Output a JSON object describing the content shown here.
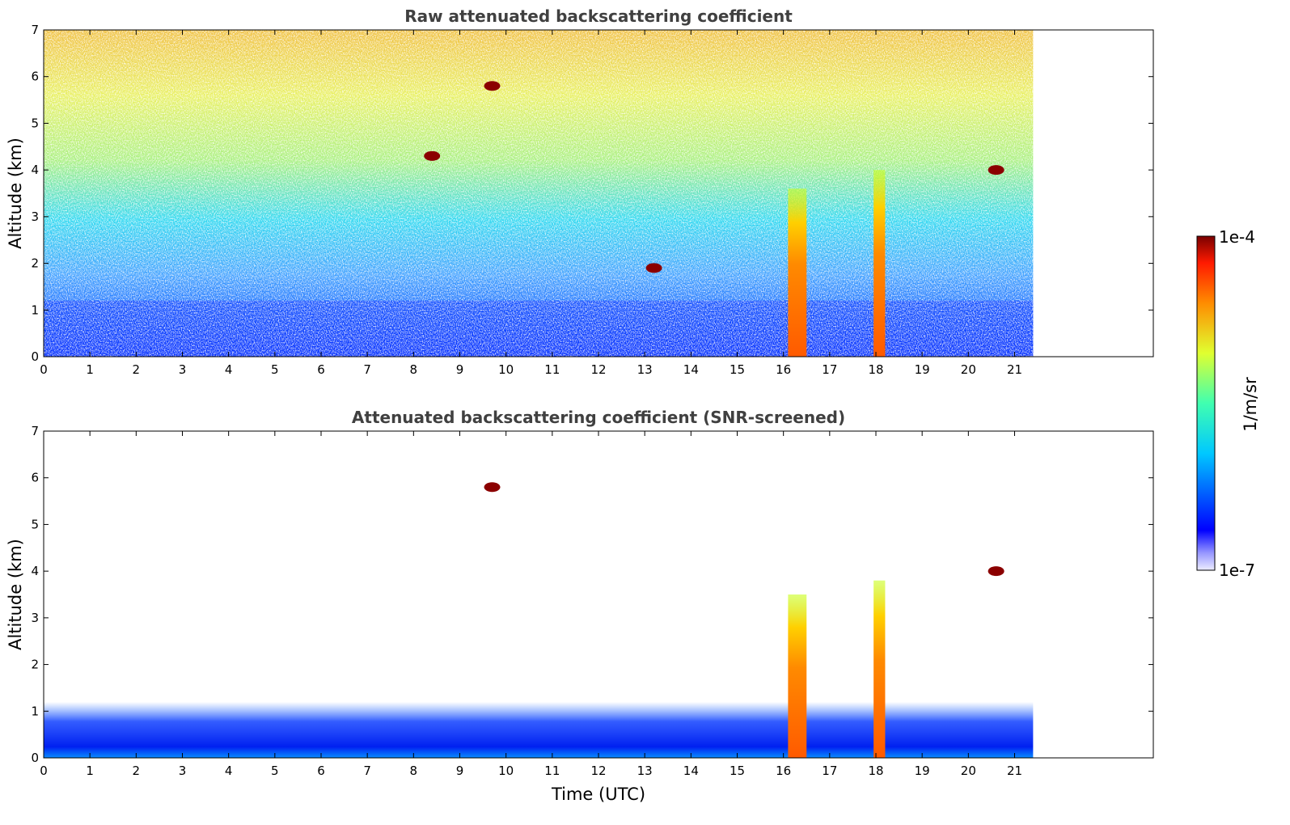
{
  "chart_data": [
    {
      "type": "heatmap",
      "title": "Raw attenuated backscattering coefficient",
      "xlabel": "",
      "ylabel": "Altitude (km)",
      "xlim": [
        0,
        24
      ],
      "ylim": [
        0,
        7
      ],
      "xticks": [
        "0",
        "1",
        "2",
        "3",
        "4",
        "5",
        "6",
        "7",
        "8",
        "9",
        "10",
        "11",
        "12",
        "13",
        "14",
        "15",
        "16",
        "17",
        "18",
        "19",
        "20",
        "21"
      ],
      "yticks": [
        "0",
        "1",
        "2",
        "3",
        "4",
        "5",
        "6",
        "7"
      ],
      "data_time_range": [
        0,
        21.4
      ],
      "colorscale": "jet",
      "features": [
        {
          "name": "boundary layer aerosol",
          "time_range": [
            0,
            21.4
          ],
          "altitude_range": [
            0,
            1.2
          ]
        },
        {
          "name": "precipitation column",
          "time_range": [
            16.1,
            16.5
          ],
          "altitude_range": [
            0,
            3.6
          ]
        },
        {
          "name": "precipitation column",
          "time_range": [
            17.95,
            18.2
          ],
          "altitude_range": [
            0,
            4.0
          ]
        },
        {
          "name": "cloud",
          "time": 9.7,
          "altitude": 5.8
        },
        {
          "name": "cloud",
          "time": 8.4,
          "altitude": 4.3
        },
        {
          "name": "cloud",
          "time": 13.2,
          "altitude": 1.9
        },
        {
          "name": "cloud",
          "time": 20.6,
          "altitude": 4.0
        }
      ]
    },
    {
      "type": "heatmap",
      "title": "Attenuated backscattering coefficient (SNR-screened)",
      "xlabel": "Time (UTC)",
      "ylabel": "Altitude (km)",
      "xlim": [
        0,
        24
      ],
      "ylim": [
        0,
        7
      ],
      "xticks": [
        "0",
        "1",
        "2",
        "3",
        "4",
        "5",
        "6",
        "7",
        "8",
        "9",
        "10",
        "11",
        "12",
        "13",
        "14",
        "15",
        "16",
        "17",
        "18",
        "19",
        "20",
        "21"
      ],
      "yticks": [
        "0",
        "1",
        "2",
        "3",
        "4",
        "5",
        "6",
        "7"
      ],
      "data_time_range": [
        0,
        21.4
      ],
      "colorscale": "jet",
      "features": [
        {
          "name": "boundary layer aerosol",
          "time_range": [
            0,
            21.4
          ],
          "altitude_range": [
            0,
            1.2
          ]
        },
        {
          "name": "precipitation column",
          "time_range": [
            16.1,
            16.5
          ],
          "altitude_range": [
            0,
            3.5
          ]
        },
        {
          "name": "precipitation column",
          "time_range": [
            17.95,
            18.2
          ],
          "altitude_range": [
            0,
            3.8
          ]
        },
        {
          "name": "cloud",
          "time": 9.7,
          "altitude": 5.8
        },
        {
          "name": "cloud",
          "time": 20.6,
          "altitude": 4.0
        }
      ]
    }
  ],
  "colorbar": {
    "label": "1/m/sr",
    "max_label": "1e-4",
    "min_label": "1e-7",
    "range": [
      1e-07,
      0.0001
    ],
    "scale": "log"
  }
}
